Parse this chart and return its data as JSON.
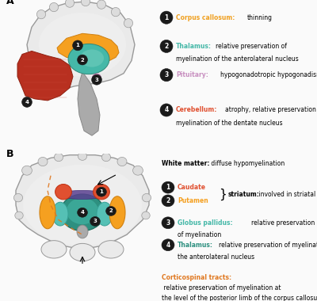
{
  "bg_color": "#FAFAFA",
  "panel_A_label": "A",
  "panel_B_label": "B",
  "colors": {
    "corpus_callosum_fill": "#F5A020",
    "corpus_callosum_edge": "#D08010",
    "thalamus_fill": "#45B8A8",
    "thalamus_edge": "#308878",
    "pituitary_fill": "#D090C0",
    "pituitary_edge": "#B070A0",
    "cerebellum_fill": "#B83020",
    "cerebellum_edge": "#902010",
    "cerebellum_line": "#D05040",
    "brain_fill": "#EAEAEA",
    "brain_edge": "#999999",
    "gyri_fill": "#DCDCDC",
    "brainstem_fill": "#AAAAAA",
    "brainstem_edge": "#888888",
    "inner_fill": "#B8C8A8",
    "caudate_fill": "#E05030",
    "caudate_edge": "#C03010",
    "putamen_fill": "#F5A020",
    "putamen_edge": "#D08010",
    "gp_fill": "#55C0B5",
    "gp_edge": "#35A095",
    "thal_b_fill": "#2E9080",
    "thal_b_edge": "#1A6858",
    "thal_b_inner": "#45B8A8",
    "striatum_fill": "#5A4090",
    "striatum_edge": "#3A2070",
    "corticospinal_color": "#E07820",
    "label_bg": "#1A1A1A",
    "label_text": "#FFFFFF",
    "text_black": "#000000",
    "ann_cc_color": "#F0A020",
    "ann_thal_color": "#45B8A8",
    "ann_pit_color": "#C890C0",
    "ann_cereb_color": "#E05030",
    "ann_caudate_color": "#E05030",
    "ann_putamen_color": "#F5A020",
    "ann_gp_color": "#45B8A8",
    "ann_thal_b_color": "#2E9080"
  },
  "ann_A": [
    {
      "num": "1",
      "label": "Corpus callosum:",
      "desc": "thinning",
      "line2": ""
    },
    {
      "num": "2",
      "label": "Thalamus:",
      "desc": "relative preservation of",
      "line2": "myelination of the anterolateral nucleus"
    },
    {
      "num": "3",
      "label": "Pituitary:",
      "desc": "hypogonadotropic hypogonadism",
      "line2": ""
    },
    {
      "num": "4",
      "label": "Cerebellum:",
      "desc": "atrophy, relative preservation of",
      "line2": "myelination of the dentate nucleus"
    }
  ],
  "ann_B": [
    {
      "num": "1",
      "label": "Caudate"
    },
    {
      "num": "2",
      "label": "Putamen"
    },
    {
      "num": "3",
      "label": "Globus pallidus:",
      "desc": "relative preservation",
      "line2": "of myelination"
    },
    {
      "num": "4",
      "label": "Thalamus:",
      "desc": "relative preservation of myelination of",
      "line2": "the anterolateral nucleus"
    }
  ],
  "wm_bold": "White matter:",
  "wm_plain": " diffuse hypomyelination",
  "striatum_bold": "striatum:",
  "striatum_plain": " involved in striatal variant",
  "cs_bold": "Corticospinal tracts:",
  "cs_line1": " relative preservation of myelination at",
  "cs_line2": "the level of the posterior limb of the corpus callosum"
}
